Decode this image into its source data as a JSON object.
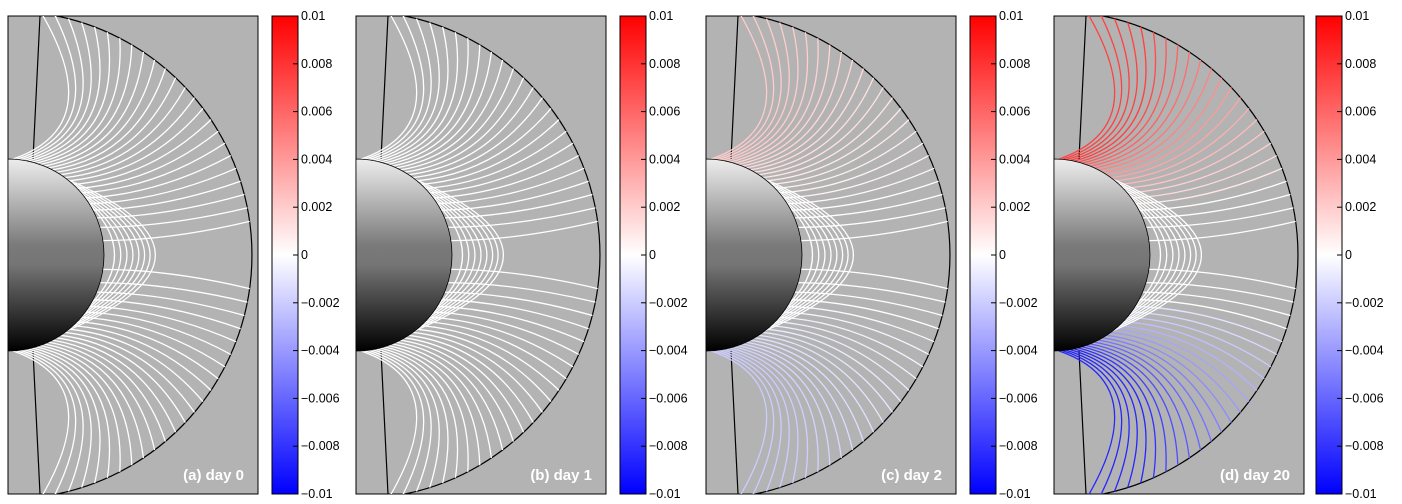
{
  "chart_data": [
    {
      "type": "heatmap",
      "title": "(a) day 0",
      "description_of_field_lines": "all field lines uncolored",
      "colorbar": {
        "min": -0.01,
        "max": 0.01,
        "cmap": "blue-white-red"
      },
      "field_lines": {
        "north_value": 0.0,
        "south_value": 0.0,
        "equator_value": 0.0
      }
    },
    {
      "type": "heatmap",
      "title": "(b) day 1",
      "colorbar": {
        "min": -0.01,
        "max": 0.01,
        "cmap": "blue-white-red"
      },
      "field_lines": {
        "north_value": 0.0,
        "south_value": 0.0,
        "equator_value": 0.0
      }
    },
    {
      "type": "heatmap",
      "title": "(c) day 2",
      "colorbar": {
        "min": -0.01,
        "max": 0.01,
        "cmap": "blue-white-red"
      },
      "field_lines": {
        "north_value": 0.002,
        "south_value": -0.002,
        "equator_value": 0.0
      }
    },
    {
      "type": "heatmap",
      "title": "(d) day 20",
      "colorbar": {
        "min": -0.01,
        "max": 0.01,
        "cmap": "blue-white-red"
      },
      "field_lines": {
        "north_value": 0.0075,
        "south_value": -0.0085,
        "equator_value": 0.0
      }
    }
  ],
  "colorbar_ticks": [
    {
      "value": 0.01,
      "label": "0.01"
    },
    {
      "value": 0.008,
      "label": "0.008"
    },
    {
      "value": 0.006,
      "label": "0.006"
    },
    {
      "value": 0.004,
      "label": "0.004"
    },
    {
      "value": 0.002,
      "label": "0.002"
    },
    {
      "value": 0.0,
      "label": "0"
    },
    {
      "value": -0.002,
      "label": "−0.002"
    },
    {
      "value": -0.004,
      "label": "−0.004"
    },
    {
      "value": -0.006,
      "label": "−0.006"
    },
    {
      "value": -0.008,
      "label": "−0.008"
    },
    {
      "value": -0.01,
      "label": "−0.01"
    }
  ],
  "colors": {
    "background": "#ffffff",
    "panel_fill": "#b3b3b3",
    "field_line_neutral": "#ffffff",
    "positive": "#ff0000",
    "negative": "#0000ff",
    "outline": "#000000"
  }
}
